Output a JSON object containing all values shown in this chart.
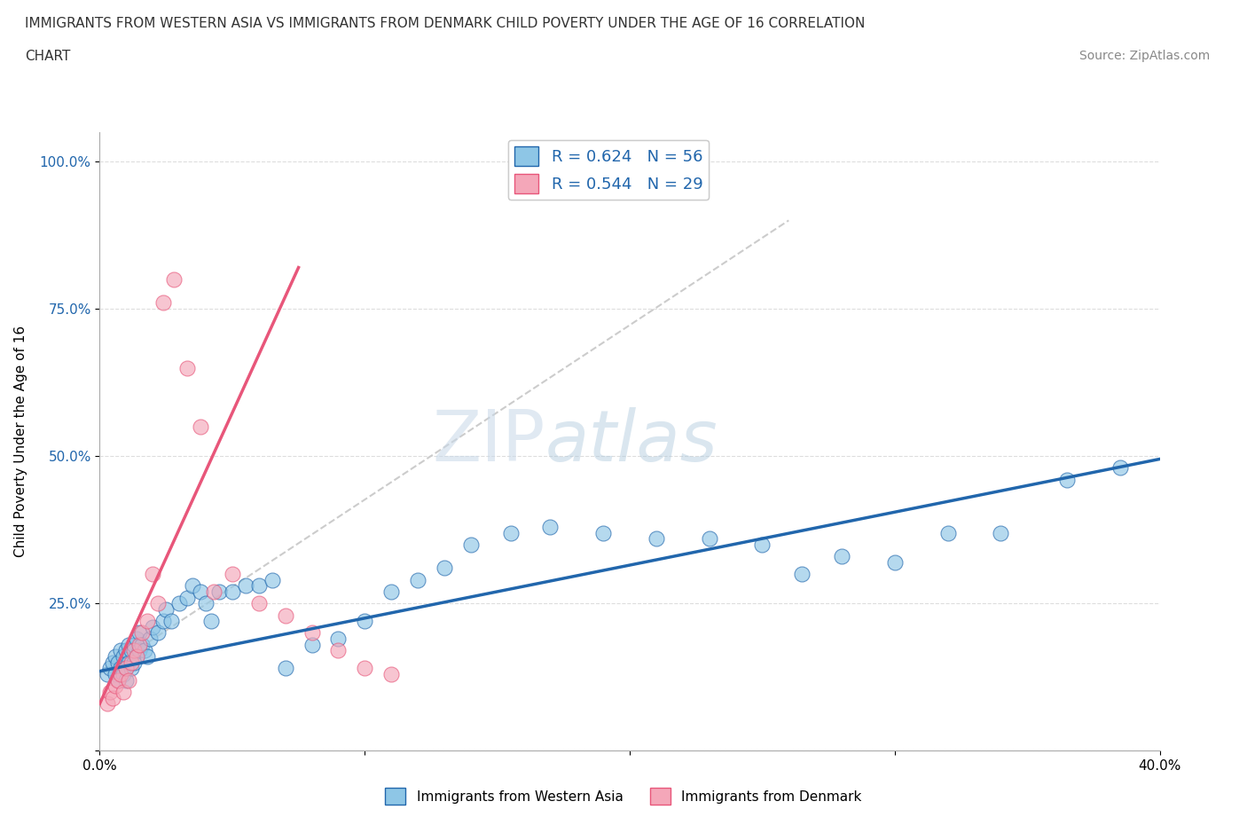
{
  "title_line1": "IMMIGRANTS FROM WESTERN ASIA VS IMMIGRANTS FROM DENMARK CHILD POVERTY UNDER THE AGE OF 16 CORRELATION",
  "title_line2": "CHART",
  "source": "Source: ZipAtlas.com",
  "ylabel": "Child Poverty Under the Age of 16",
  "xlim": [
    0.0,
    0.4
  ],
  "ylim": [
    0.0,
    1.05
  ],
  "x_ticks": [
    0.0,
    0.1,
    0.2,
    0.3,
    0.4
  ],
  "y_ticks": [
    0.0,
    0.25,
    0.5,
    0.75,
    1.0
  ],
  "color_blue": "#8ec6e6",
  "color_pink": "#f4a7b9",
  "color_blue_line": "#2166ac",
  "color_pink_line": "#e8567a",
  "color_dashed_line": "#cccccc",
  "color_blue_text": "#2166ac",
  "watermark_zip": "ZIP",
  "watermark_atlas": "atlas",
  "blue_scatter_x": [
    0.003,
    0.004,
    0.005,
    0.006,
    0.006,
    0.007,
    0.007,
    0.008,
    0.008,
    0.009,
    0.009,
    0.01,
    0.01,
    0.01,
    0.011,
    0.011,
    0.012,
    0.012,
    0.013,
    0.013,
    0.014,
    0.014,
    0.015,
    0.015,
    0.016,
    0.017,
    0.018,
    0.019,
    0.02,
    0.022,
    0.024,
    0.025,
    0.027,
    0.03,
    0.033,
    0.035,
    0.038,
    0.04,
    0.042,
    0.045,
    0.05,
    0.055,
    0.06,
    0.065,
    0.07,
    0.08,
    0.09,
    0.1,
    0.11,
    0.12,
    0.13,
    0.14,
    0.155,
    0.17,
    0.19,
    0.21,
    0.23,
    0.25,
    0.265,
    0.28,
    0.3,
    0.32,
    0.34,
    0.365,
    0.385
  ],
  "blue_scatter_y": [
    0.13,
    0.14,
    0.15,
    0.13,
    0.16,
    0.12,
    0.15,
    0.14,
    0.17,
    0.13,
    0.16,
    0.12,
    0.14,
    0.17,
    0.15,
    0.18,
    0.14,
    0.17,
    0.15,
    0.18,
    0.16,
    0.19,
    0.17,
    0.2,
    0.18,
    0.17,
    0.16,
    0.19,
    0.21,
    0.2,
    0.22,
    0.24,
    0.22,
    0.25,
    0.26,
    0.28,
    0.27,
    0.25,
    0.22,
    0.27,
    0.27,
    0.28,
    0.28,
    0.29,
    0.14,
    0.18,
    0.19,
    0.22,
    0.27,
    0.29,
    0.31,
    0.35,
    0.37,
    0.38,
    0.37,
    0.36,
    0.36,
    0.35,
    0.3,
    0.33,
    0.32,
    0.37,
    0.37,
    0.46,
    0.48
  ],
  "pink_scatter_x": [
    0.003,
    0.004,
    0.005,
    0.006,
    0.007,
    0.008,
    0.009,
    0.01,
    0.011,
    0.012,
    0.013,
    0.014,
    0.015,
    0.016,
    0.018,
    0.02,
    0.022,
    0.024,
    0.028,
    0.033,
    0.038,
    0.043,
    0.05,
    0.06,
    0.07,
    0.08,
    0.09,
    0.1,
    0.11
  ],
  "pink_scatter_y": [
    0.08,
    0.1,
    0.09,
    0.11,
    0.12,
    0.13,
    0.1,
    0.14,
    0.12,
    0.15,
    0.17,
    0.16,
    0.18,
    0.2,
    0.22,
    0.3,
    0.25,
    0.76,
    0.8,
    0.65,
    0.55,
    0.27,
    0.3,
    0.25,
    0.23,
    0.2,
    0.17,
    0.14,
    0.13
  ],
  "blue_line_x": [
    0.0,
    0.4
  ],
  "blue_line_y": [
    0.135,
    0.495
  ],
  "pink_line_x": [
    0.0,
    0.075
  ],
  "pink_line_y": [
    0.08,
    0.82
  ],
  "dashed_line_x": [
    0.0,
    0.26
  ],
  "dashed_line_y": [
    0.13,
    0.9
  ]
}
